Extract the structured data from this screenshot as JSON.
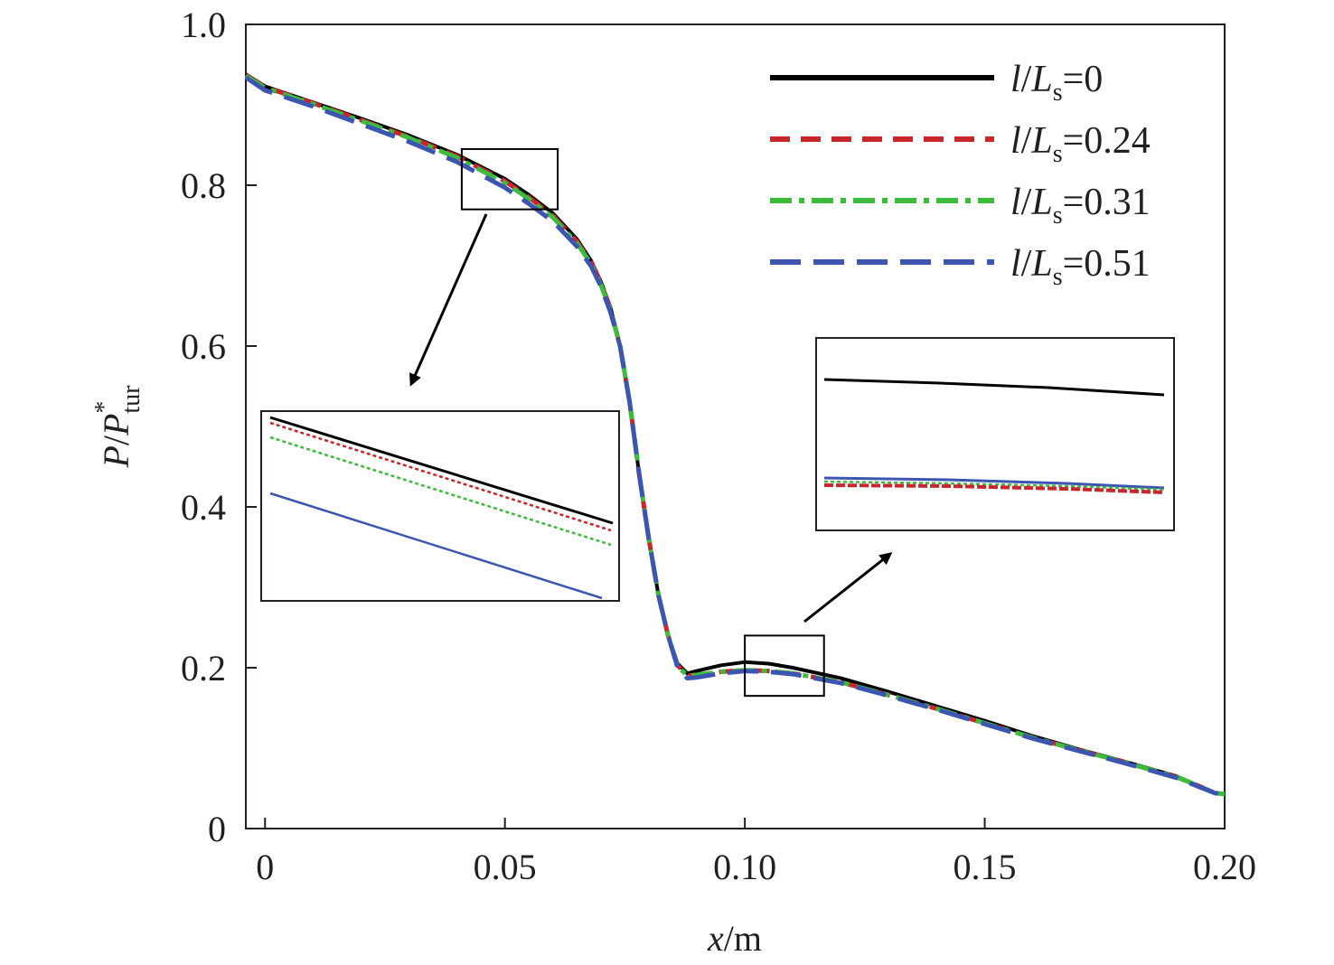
{
  "chart_data": {
    "type": "line",
    "title": "",
    "xlabel": {
      "main": "x",
      "rest": "/m"
    },
    "ylabel": {
      "p1": "P",
      "slash": "/",
      "p2": "P",
      "sup": "*",
      "sub": "tur"
    },
    "xlim": [
      -0.004,
      0.2
    ],
    "ylim": [
      0,
      1.0
    ],
    "x_ticks": [
      0,
      0.05,
      0.1,
      0.15,
      0.2
    ],
    "x_tick_labels": [
      "0",
      "0.05",
      "0.10",
      "0.15",
      "0.20"
    ],
    "y_ticks": [
      0,
      0.2,
      0.4,
      0.6,
      0.8,
      1.0
    ],
    "y_tick_labels": [
      "0",
      "0.2",
      "0.4",
      "0.6",
      "0.8",
      "1.0"
    ],
    "grid": false,
    "legend_position": "top-right",
    "legend": [
      {
        "italic_l": "l",
        "slash": "/",
        "italic_L": "L",
        "sub": "s",
        "suffix": "=0",
        "color": "#000000",
        "dash": ""
      },
      {
        "italic_l": "l",
        "slash": "/",
        "italic_L": "L",
        "sub": "s",
        "suffix": "=0.24",
        "color": "#c8262b",
        "dash": "22,12"
      },
      {
        "italic_l": "l",
        "slash": "/",
        "italic_L": "L",
        "sub": "s",
        "suffix": "=0.31",
        "color": "#3dbb3d",
        "dash": "24,8,6,8"
      },
      {
        "italic_l": "l",
        "slash": "/",
        "italic_L": "L",
        "sub": "s",
        "suffix": "=0.51",
        "color": "#3b55b0",
        "dash": "34,14"
      }
    ],
    "series": [
      {
        "name": "l/Ls=0",
        "color": "#000000",
        "width": 4,
        "dash": "",
        "x": [
          -0.004,
          0,
          0.01,
          0.02,
          0.03,
          0.04,
          0.05,
          0.055,
          0.06,
          0.065,
          0.068,
          0.07,
          0.072,
          0.074,
          0.076,
          0.078,
          0.08,
          0.082,
          0.084,
          0.086,
          0.088,
          0.09,
          0.095,
          0.1,
          0.105,
          0.11,
          0.12,
          0.13,
          0.14,
          0.15,
          0.16,
          0.17,
          0.18,
          0.19,
          0.195,
          0.198,
          0.2
        ],
        "y": [
          0.938,
          0.923,
          0.903,
          0.883,
          0.862,
          0.838,
          0.808,
          0.788,
          0.765,
          0.733,
          0.706,
          0.68,
          0.648,
          0.6,
          0.53,
          0.44,
          0.36,
          0.29,
          0.24,
          0.205,
          0.193,
          0.196,
          0.203,
          0.207,
          0.205,
          0.2,
          0.187,
          0.17,
          0.152,
          0.134,
          0.115,
          0.098,
          0.082,
          0.065,
          0.052,
          0.044,
          0.043
        ]
      },
      {
        "name": "l/Ls=0.24",
        "color": "#c8262b",
        "width": 5,
        "dash": "22,12",
        "x": [
          -0.004,
          0,
          0.01,
          0.02,
          0.03,
          0.04,
          0.05,
          0.055,
          0.06,
          0.065,
          0.068,
          0.07,
          0.072,
          0.074,
          0.076,
          0.078,
          0.08,
          0.082,
          0.084,
          0.086,
          0.088,
          0.09,
          0.095,
          0.1,
          0.105,
          0.11,
          0.12,
          0.13,
          0.14,
          0.15,
          0.16,
          0.17,
          0.18,
          0.19,
          0.195,
          0.198,
          0.2
        ],
        "y": [
          0.937,
          0.922,
          0.902,
          0.881,
          0.86,
          0.836,
          0.805,
          0.785,
          0.762,
          0.73,
          0.704,
          0.678,
          0.646,
          0.6,
          0.53,
          0.44,
          0.36,
          0.29,
          0.24,
          0.203,
          0.19,
          0.191,
          0.195,
          0.197,
          0.196,
          0.193,
          0.182,
          0.166,
          0.149,
          0.131,
          0.113,
          0.097,
          0.081,
          0.064,
          0.052,
          0.044,
          0.043
        ]
      },
      {
        "name": "l/Ls=0.31",
        "color": "#3dbb3d",
        "width": 5,
        "dash": "24,8,6,8",
        "x": [
          -0.004,
          0,
          0.01,
          0.02,
          0.03,
          0.04,
          0.05,
          0.055,
          0.06,
          0.065,
          0.068,
          0.07,
          0.072,
          0.074,
          0.076,
          0.078,
          0.08,
          0.082,
          0.084,
          0.086,
          0.088,
          0.09,
          0.095,
          0.1,
          0.105,
          0.11,
          0.12,
          0.13,
          0.14,
          0.15,
          0.16,
          0.17,
          0.18,
          0.19,
          0.195,
          0.198,
          0.2
        ],
        "y": [
          0.936,
          0.921,
          0.901,
          0.88,
          0.859,
          0.834,
          0.803,
          0.783,
          0.76,
          0.728,
          0.702,
          0.676,
          0.644,
          0.6,
          0.53,
          0.44,
          0.36,
          0.29,
          0.24,
          0.202,
          0.19,
          0.191,
          0.195,
          0.197,
          0.196,
          0.193,
          0.182,
          0.166,
          0.149,
          0.131,
          0.113,
          0.097,
          0.081,
          0.064,
          0.052,
          0.044,
          0.043
        ]
      },
      {
        "name": "l/Ls=0.51",
        "color": "#3b55b0",
        "width": 5,
        "dash": "34,14",
        "x": [
          -0.004,
          0,
          0.01,
          0.02,
          0.03,
          0.04,
          0.05,
          0.055,
          0.06,
          0.065,
          0.068,
          0.07,
          0.072,
          0.074,
          0.076,
          0.078,
          0.08,
          0.082,
          0.084,
          0.086,
          0.088,
          0.09,
          0.095,
          0.1,
          0.105,
          0.11,
          0.12,
          0.13,
          0.14,
          0.15,
          0.16,
          0.17,
          0.18,
          0.19,
          0.195,
          0.198,
          0.2
        ],
        "y": [
          0.934,
          0.918,
          0.898,
          0.876,
          0.854,
          0.829,
          0.797,
          0.777,
          0.755,
          0.724,
          0.699,
          0.674,
          0.642,
          0.6,
          0.53,
          0.44,
          0.36,
          0.29,
          0.24,
          0.2,
          0.187,
          0.188,
          0.193,
          0.196,
          0.195,
          0.192,
          0.181,
          0.165,
          0.148,
          0.13,
          0.112,
          0.096,
          0.08,
          0.063,
          0.051,
          0.044,
          0.043
        ]
      }
    ],
    "zoom_boxes": [
      {
        "x0": 0.041,
        "x1": 0.061,
        "y0": 0.77,
        "y1": 0.845
      },
      {
        "x0": 0.1,
        "x1": 0.1165,
        "y0": 0.165,
        "y1": 0.24
      }
    ]
  }
}
